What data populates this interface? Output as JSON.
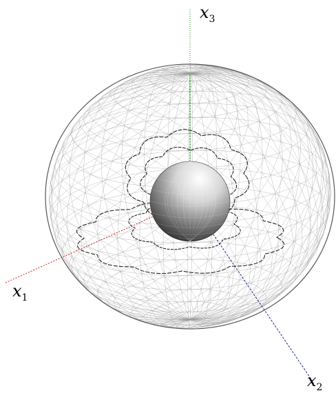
{
  "figure": {
    "axes": {
      "x1": {
        "label": "x",
        "subscript": "1",
        "color": "#d11f1f"
      },
      "x2": {
        "label": "x",
        "subscript": "2",
        "color": "#1f2a8c"
      },
      "x3": {
        "label": "x",
        "subscript": "3",
        "color": "#1a8a1a"
      }
    },
    "colors": {
      "mesh": "#9a9a9a",
      "rim": "#555555",
      "contour": "#111111",
      "sphere_light": "#ffffff",
      "sphere_dark": "#2a2a2a"
    },
    "components": [
      "outer-wireframe-ellipsoid",
      "inner-shaded-sphere",
      "flower-contour-curves",
      "coordinate-axes"
    ]
  }
}
